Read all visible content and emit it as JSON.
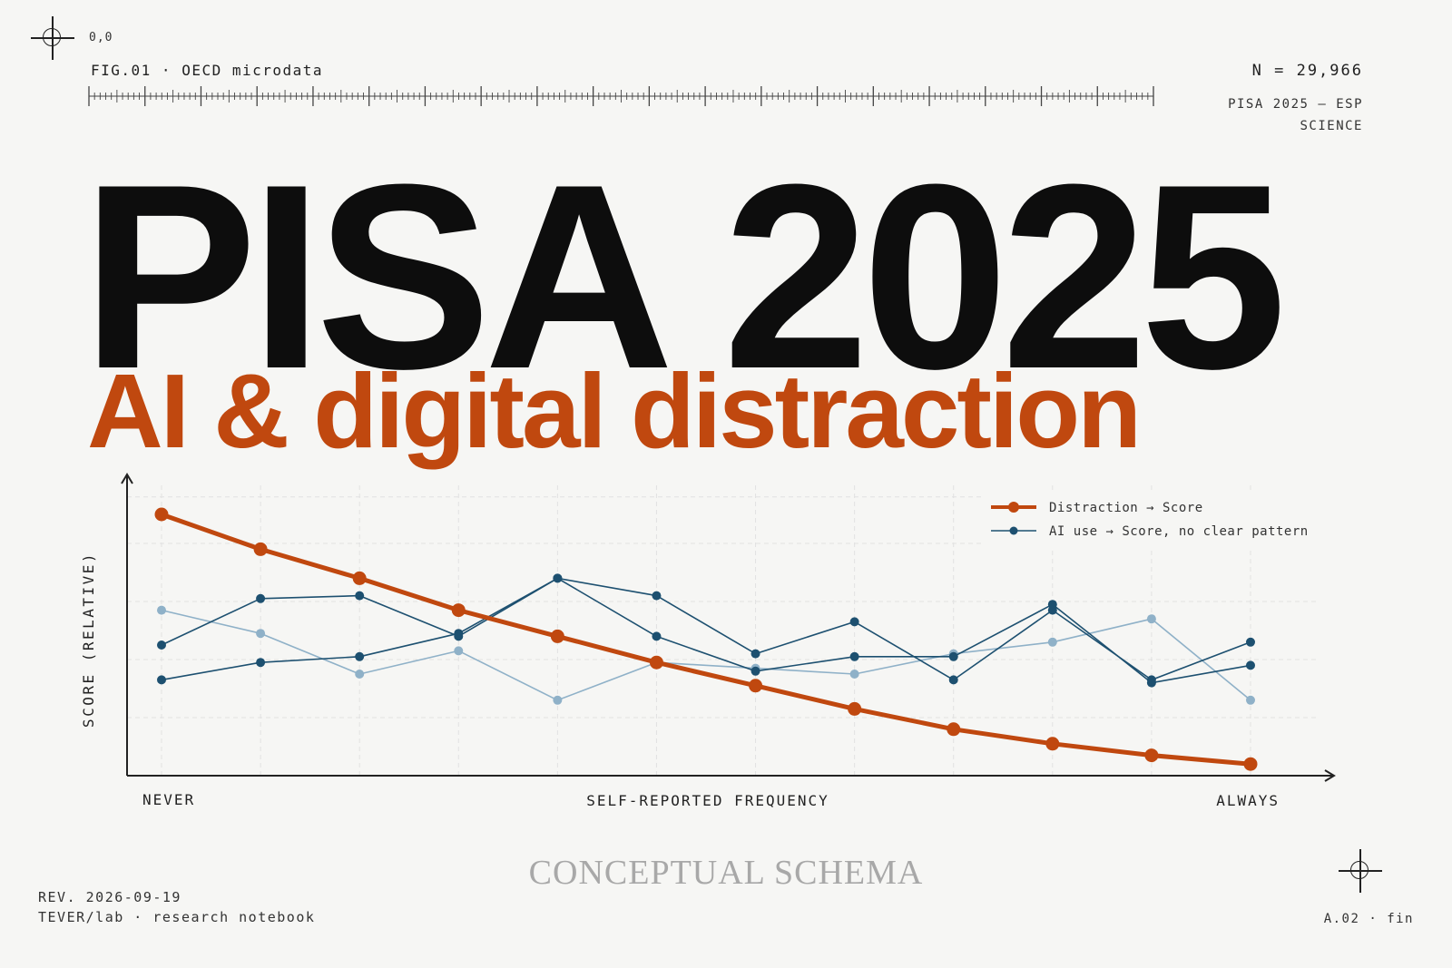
{
  "header": {
    "origin": "0,0",
    "fig_label": "FIG.01 · OECD microdata",
    "n_label": "N = 29,966",
    "study_label": "PISA 2025 — ESP",
    "subject_label": "SCIENCE"
  },
  "title": "PISA 2025",
  "subtitle": "AI & digital distraction",
  "footer": {
    "schema_label": "CONCEPTUAL SCHEMA",
    "revision": "REV. 2026-09-19",
    "lab": "TEVER/lab · research notebook",
    "page_ref": "A.02 · fin"
  },
  "colors": {
    "accent": "#c0480f",
    "ai_dark": "#1d5070",
    "ai_light": "#8fb1c8",
    "ink": "#0d0d0d"
  },
  "chart_data": {
    "type": "line",
    "title": "",
    "xlabel": "SELF-REPORTED FREQUENCY",
    "ylabel": "SCORE (RELATIVE)",
    "x_tick_labels": [
      "NEVER",
      "ALWAYS"
    ],
    "x": [
      1,
      2,
      3,
      4,
      5,
      6,
      7,
      8,
      9,
      10,
      11,
      12
    ],
    "ylim": [
      0,
      1
    ],
    "grid": true,
    "legend_position": "top-right",
    "legend": [
      {
        "label": "Distraction → Score",
        "color": "#c0480f"
      },
      {
        "label": "AI use → Score, no clear pattern",
        "color": "#1d5070"
      }
    ],
    "series": [
      {
        "name": "Distraction → Score",
        "color": "#c0480f",
        "values": [
          0.9,
          0.78,
          0.68,
          0.57,
          0.48,
          0.39,
          0.31,
          0.23,
          0.16,
          0.11,
          0.07,
          0.04
        ]
      },
      {
        "color": "#1d5070",
        "values": [
          0.45,
          0.61,
          0.62,
          0.48,
          0.68,
          0.62,
          0.42,
          0.53,
          0.33,
          0.57,
          0.33,
          0.46
        ]
      },
      {
        "color": "#1d5070",
        "values": [
          0.33,
          0.39,
          0.41,
          0.49,
          0.68,
          0.48,
          0.36,
          0.41,
          0.41,
          0.59,
          0.32,
          0.38
        ]
      },
      {
        "color": "#8fb1c8",
        "values": [
          0.57,
          0.49,
          0.35,
          0.43,
          0.26,
          0.39,
          0.37,
          0.35,
          0.42,
          0.46,
          0.54,
          0.26
        ]
      }
    ]
  }
}
